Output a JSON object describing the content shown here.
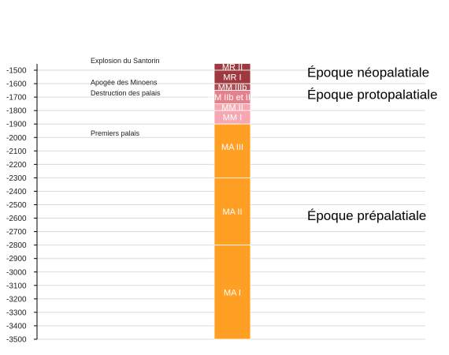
{
  "colors": {
    "ma": "#ffa024",
    "mm_light": "#f7a7b1",
    "mm_mid": "#e6818c",
    "mm_dark": "#b04d55",
    "mr": "#9e3a3f",
    "grid": "#d9d9d9",
    "axis": "#000000"
  },
  "axis": {
    "min": -3500,
    "max": -1500,
    "step": 100
  },
  "segments": [
    {
      "label": "MR II",
      "from": -1500,
      "to": -1450,
      "color_key": "mr"
    },
    {
      "label": "MR I",
      "from": -1600,
      "to": -1500,
      "color_key": "mr"
    },
    {
      "label": "MM IIIb",
      "from": -1650,
      "to": -1600,
      "color_key": "mm_dark"
    },
    {
      "label": "MM IIb et IIIa",
      "from": -1750,
      "to": -1650,
      "color_key": "mm_mid"
    },
    {
      "label": "MM II",
      "from": -1800,
      "to": -1750,
      "color_key": "mm_light"
    },
    {
      "label": "MM I",
      "from": -1900,
      "to": -1800,
      "color_key": "mm_light"
    },
    {
      "label": "MA III",
      "from": -2300,
      "to": -1900,
      "color_key": "ma"
    },
    {
      "label": "MA II",
      "from": -2800,
      "to": -2300,
      "color_key": "ma"
    },
    {
      "label": "MA I",
      "from": -3500,
      "to": -2800,
      "color_key": "ma"
    }
  ],
  "events": [
    {
      "label": "Explosion du Santorin",
      "year": -1430
    },
    {
      "label": "Apogée des Minoens",
      "year": -1590
    },
    {
      "label": "Destruction des palais",
      "year": -1670
    },
    {
      "label": "Premiers palais",
      "year": -1970
    }
  ],
  "periods": [
    {
      "label": "Époque néopalatiale",
      "year": -1515
    },
    {
      "label": "Époque protopalatiale",
      "year": -1680
    },
    {
      "label": "Époque prépalatiale",
      "year": -2580
    }
  ]
}
